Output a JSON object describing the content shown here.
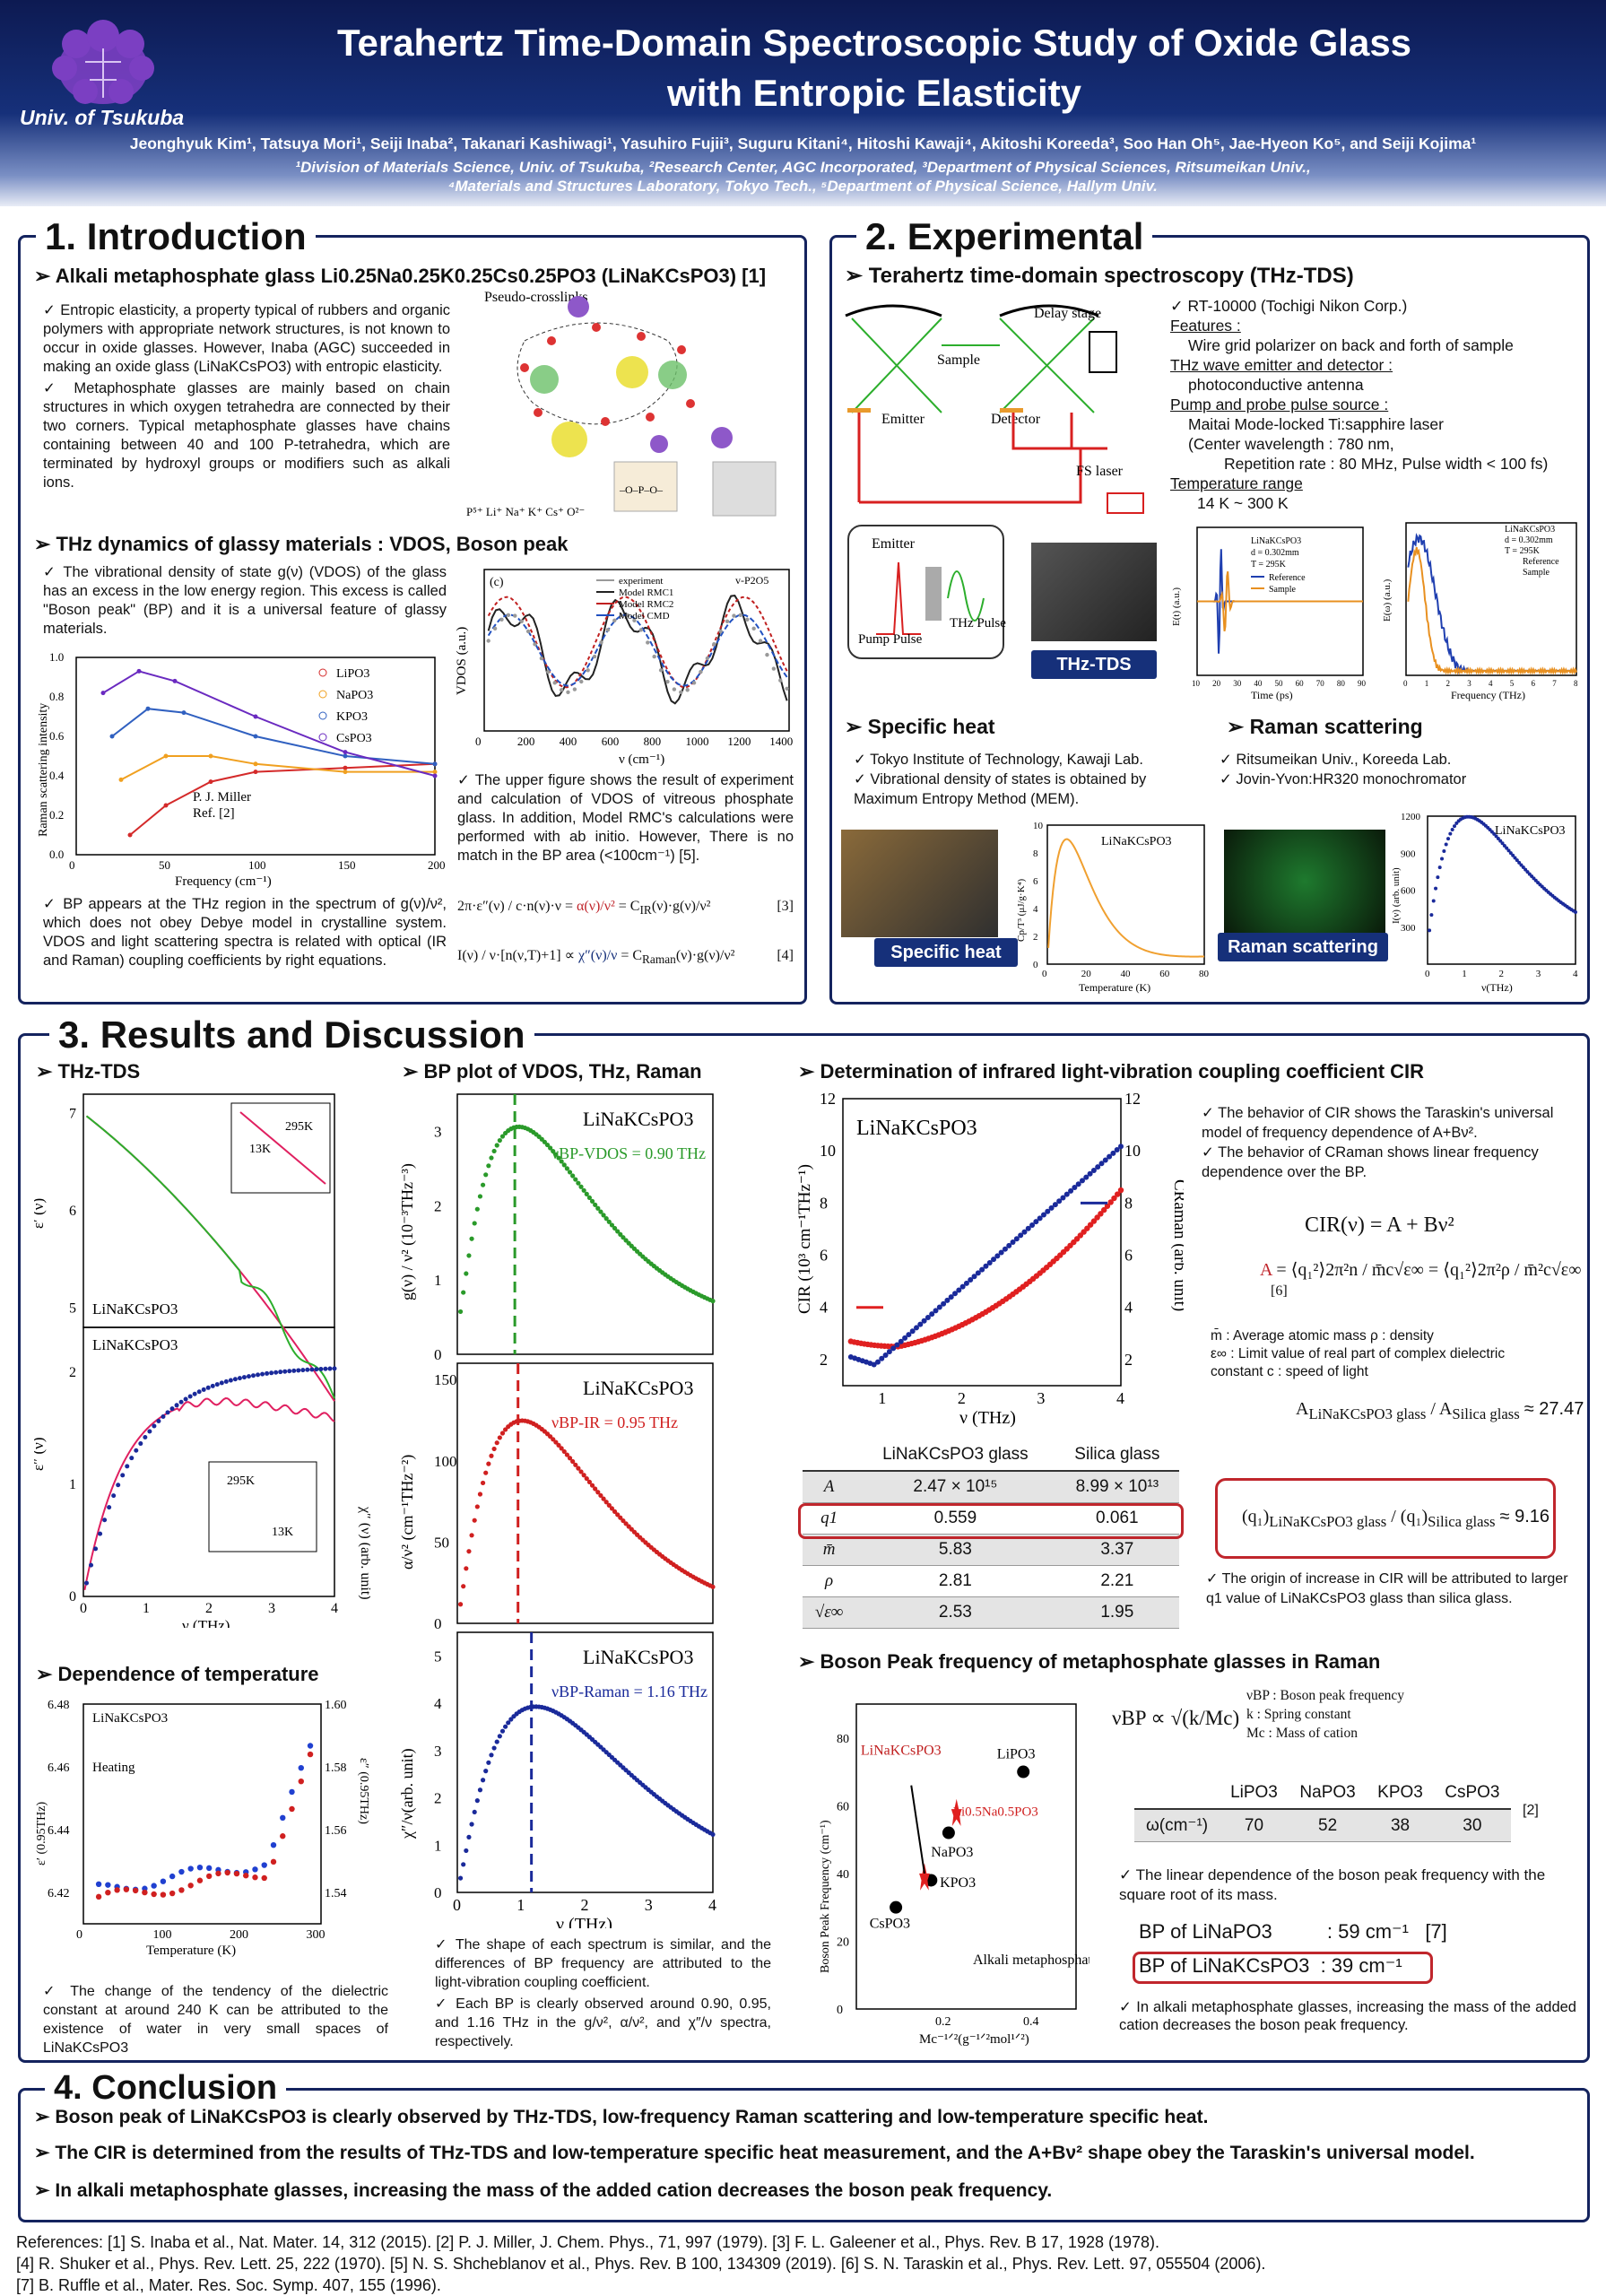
{
  "header": {
    "univ": "Univ. of Tsukuba",
    "title_line1": "Terahertz Time-Domain Spectroscopic Study of Oxide Glass",
    "title_line2": "with Entropic Elasticity",
    "authors": "Jeonghyuk Kim¹, Tatsuya Mori¹, Seiji Inaba², Takanari Kashiwagi¹, Yasuhiro Fujii³, Suguru Kitani⁴, Hitoshi Kawaji⁴, Akitoshi Koreeda³, Soo Han Oh⁵, Jae-Hyeon Ko⁵, and Seiji Kojima¹",
    "affil1": "¹Division of Materials Science, Univ. of Tsukuba, ²Research Center, AGC Incorporated, ³Department of Physical Sciences, Ritsumeikan Univ.,",
    "affil2": "⁴Materials and Structures Laboratory, Tokyo Tech., ⁵Department of Physical Science, Hallym Univ."
  },
  "intro": {
    "title": "1. Introduction",
    "sub1": "➢ Alkali metaphosphate glass Li0.25Na0.25K0.25Cs0.25PO3 (LiNaKCsPO3) [1]",
    "p1": "✓ Entropic elasticity, a property typical of rubbers and organic polymers with appropriate network structures, is not known to occur in oxide glasses. However, Inaba (AGC) succeeded in making an oxide glass (LiNaKCsPO3) with entropic elasticity.",
    "p2": "✓ Metaphosphate glasses are mainly based on chain structures in which oxygen tetrahedra are connected by their two corners. Typical metaphosphate glasses have chains containing between 40 and 100 P-tetrahedra, which are terminated by hydroxyl groups or modifiers such as alkali ions.",
    "fig_label": "Pseudo-crosslinks",
    "ions": "P⁵⁺ Li⁺ Na⁺ K⁺ Cs⁺ O²⁻",
    "sub2": "➢ THz dynamics of glassy materials : VDOS, Boson peak",
    "p3": "✓ The vibrational density of state g(ν) (VDOS) of the glass has an excess in the low energy region. This excess is called \"Boson peak\" (BP) and it is a universal feature of glassy materials.",
    "p4": "✓ BP appears at the THz region in the spectrum of g(ν)/ν², which does not obey Debye model in crystalline system. VDOS and light scattering spectra is related with optical (IR and Raman) coupling coefficients by right equations.",
    "p5": "✓ The upper figure shows the result of experiment and calculation of VDOS of vitreous phosphate glass. In addition, Model RMC's calculations were performed with ab initio. However, There is no match in the BP area (<100cm⁻¹) [5].",
    "eq3": "[3]",
    "eq4": "[4]",
    "raman_ylabel": "Raman scattering intensity",
    "raman_xlabel": "Frequency (cm⁻¹)",
    "raman_note1": "P. J. Miller",
    "raman_note2": "Ref. [2]",
    "raman_legend": [
      "LiPO3",
      "NaPO3",
      "KPO3",
      "CsPO3"
    ],
    "vdos_ylabel": "VDOS (a.u.)",
    "vdos_xlabel": "ν (cm⁻¹)",
    "vdos_panel": "(c)",
    "vdos_title": "v-P2O5",
    "vdos_legend": [
      "experiment",
      "Model RMC1",
      "Model RMC2",
      "Model CMD"
    ]
  },
  "exp": {
    "title": "2. Experimental",
    "sub1": "➢ Terahertz time-domain spectroscopy (THz-TDS)",
    "l1": "✓ RT-10000 (Tochigi Nikon Corp.)",
    "l2": "Features :",
    "l3": "Wire grid polarizer on back and forth of sample",
    "l4": "THz wave emitter and detector :",
    "l5": "photoconductive antenna",
    "l6": "Pump and probe pulse source :",
    "l7": "Maitai Mode-locked Ti:sapphire  laser",
    "l8": "(Center wavelength  : 780 nm,",
    "l9": "Repetition rate : 80 MHz, Pulse width < 100 fs)",
    "l10": "Temperature range",
    "l11": "14 K ~ 300 K",
    "setup": {
      "delay": "Delay stage",
      "sample": "Sample",
      "emitter": "Emitter",
      "detector": "Detector",
      "fs": "FS laser",
      "emitter2": "Emitter",
      "thz": "THz Pulse",
      "pump": "Pump Pulse"
    },
    "photo_label": "THz-TDS",
    "time_xlabel": "Time (ps)",
    "time_ylabel": "E(t) (a.u.)",
    "freq_xlabel": "Frequency (THz)",
    "freq_ylabel": "E(ω) (a.u.)",
    "sample_info": [
      "LiNaKCsPO3",
      "d = 0.302mm",
      "T = 295K"
    ],
    "ref_sample": [
      "Reference",
      "Sample"
    ],
    "sub2": "➢ Specific heat",
    "sh1": "✓ Tokyo Institute of Technology, Kawaji Lab.",
    "sh2": "✓ Vibrational density of states is obtained by Maximum Entropy Method (MEM).",
    "sh_photo": "Specific heat",
    "sh_xlabel": "Temperature (K)",
    "sh_ylabel": "Cp/T³ (μJ/g·K⁴)",
    "sh_name": "LiNaKCsPO3",
    "sub3": "➢ Raman scattering",
    "rs1": "✓ Ritsumeikan Univ., Koreeda Lab.",
    "rs2": "✓ Jovin-Yvon:HR320 monochromator",
    "rs_photo": "Raman scattering",
    "rs_xlabel": "ν(THz)",
    "rs_ylabel": "I(ν) (arb. unit)",
    "rs_name": "LiNaKCsPO3"
  },
  "results": {
    "title": "3. Results and Discussion",
    "sub_thz": "➢ THz-TDS",
    "eps1": "ε′ (ν)",
    "eps2": "ε″ (ν)",
    "thz_name": "LiNaKCsPO3",
    "inset_295": "295K",
    "inset_13": "13K",
    "thz_xlabel": "ν (THz)",
    "chi_label": "χ″ (ν) (arb. unit)",
    "sub_bp": "➢ BP plot of VDOS, THz, Raman",
    "bp_name": "LiNaKCsPO3",
    "bp_vdos": "νBP-VDOS = 0.90 THz",
    "bp_ir": "νBP-IR = 0.95 THz",
    "bp_raman": "νBP-Raman = 1.16 THz",
    "bp_y1": "g(ν) / ν² (10⁻³THz⁻³)",
    "bp_y2": "α/ν² (cm⁻¹THz⁻²)",
    "bp_y3": "χ″/ν(arb. unit)",
    "bp_xlabel": "ν (THz)",
    "bp_c1": "✓ The shape of each spectrum is similar, and the differences of BP frequency are attributed to the light-vibration coupling coefficient.",
    "bp_c2": "✓ Each BP is clearly observed around 0.90, 0.95, and 1.16 THz in the g/ν², α/ν², and χ″/ν spectra, respectively.",
    "sub_temp": "➢ Dependence of temperature",
    "temp_name": "LiNaKCsPO3",
    "temp_heat": "Heating",
    "temp_xlabel": "Temperature (K)",
    "temp_yl": "ε′ (0.95THz)",
    "temp_yr": "ε″ (0.95THz)",
    "temp_c1": "✓ The change of the tendency of the dielectric constant at around 240 K can be attributed to the existence of water in very small spaces of LiNaKCsPO3",
    "sub_cir": "➢ Determination of infrared light-vibration coupling coefficient CIR",
    "cir_name": "LiNaKCsPO3",
    "cir_ylabel": "CIR (10³ cm⁻¹THz⁻¹)",
    "cir_yr": "CRaman (arb. unit)",
    "cir_xlabel": "ν (THz)",
    "cir_c1": "✓ The behavior of CIR shows the Taraskin's universal model of frequency dependence of A+Bν².",
    "cir_c2": "✓ The behavior of CRaman shows linear frequency dependence over the BP.",
    "eq_cir": "CIR(ν) = A + Bν²",
    "eq6": "[6]",
    "defs1": "m̄ : Average atomic mass   ρ : density",
    "defs2": "ε∞ : Limit value of real part of complex dielectric constant   c : speed of light",
    "ratio_A": "≈ 27.47",
    "ratio_q": "≈ 9.16",
    "cir_c3": "✓ The origin of increase in CIR will be attributed to larger q1 value of LiNaKCsPO3 glass than silica glass.",
    "table": {
      "head": [
        "",
        "LiNaKCsPO3 glass",
        "Silica glass"
      ],
      "rows": [
        [
          "A",
          "2.47 × 10¹⁵",
          "8.99 × 10¹³"
        ],
        [
          "q1",
          "0.559",
          "0.061"
        ],
        [
          "m̄",
          "5.83",
          "3.37"
        ],
        [
          "ρ",
          "2.81",
          "2.21"
        ],
        [
          "√ε∞",
          "2.53",
          "1.95"
        ]
      ]
    },
    "sub_bpf": "➢ Boson Peak frequency of metaphosphate glasses in Raman",
    "bpf_ylabel": "Boson Peak Frequency (cm⁻¹)",
    "bpf_xlabel": "Mc⁻¹ᐟ²(g⁻¹ᐟ²mol¹ᐟ²)",
    "bpf_points": [
      "LiPO3",
      "NaPO3",
      "KPO3",
      "CsPO3",
      "LiNaKCsPO3",
      "Li0.5Na0.5PO3"
    ],
    "bpf_note": "Alkali metaphosphate glasses",
    "bp_rel": "νBP ∝ √(k/Mc)",
    "bp_defs": [
      "νBP : Boson peak frequency",
      "k : Spring constant",
      "Mc : Mass of cation"
    ],
    "om_head": [
      "",
      "LiPO3",
      "NaPO3",
      "KPO3",
      "CsPO3"
    ],
    "om_row": [
      "ω(cm⁻¹)",
      "70",
      "52",
      "38",
      "30"
    ],
    "om_ref": "[2]",
    "bpf_c1": "✓ The linear dependence of the boson peak frequency with the square root of its mass.",
    "bp_lina": "BP of LiNaPO3          : 59 cm⁻¹   [7]",
    "bp_linak": "BP of LiNaKCsPO3  : 39 cm⁻¹",
    "bpf_c2": "✓ In alkali metaphosphate glasses, increasing the mass of the added cation decreases the boson peak frequency."
  },
  "conclusion": {
    "title": "4. Conclusion",
    "c1": "➢ Boson peak of LiNaKCsPO3 is clearly observed by THz-TDS, low-frequency Raman scattering and low-temperature specific heat.",
    "c2": "➢ The CIR is determined from the results of THz-TDS and low-temperature specific heat measurement, and the A+Bν² shape obey the Taraskin's universal model.",
    "c3": "➢ In alkali metaphosphate glasses, increasing the mass of the added cation decreases the boson peak frequency."
  },
  "refs": {
    "r1": "References:  [1] S. Inaba et al., Nat. Mater. 14, 312 (2015). [2] P. J. Miller, J. Chem. Phys., 71, 997 (1979).  [3] F. L. Galeener et al., Phys. Rev. B 17, 1928 (1978).",
    "r2": "[4] R. Shuker et al., Phys. Rev. Lett. 25, 222 (1970).  [5] N. S. Shcheblanov et al., Phys. Rev. B 100, 134309 (2019). [6] S. N. Taraskin et al., Phys. Rev. Lett. 97, 055504 (2006).",
    "r3": "[7] B. Ruffle et al., Mater. Res. Soc. Symp. 407, 155 (1996)."
  },
  "chart_data": [
    {
      "type": "line",
      "title": "Raman scattering intensity (P. J. Miller)",
      "xlabel": "Frequency (cm⁻¹)",
      "ylabel": "Raman scattering intensity",
      "xlim": [
        0,
        200
      ],
      "ylim": [
        0,
        1.0
      ],
      "series": [
        {
          "name": "LiPO3",
          "x": [
            30,
            50,
            75,
            100,
            150,
            200
          ],
          "values": [
            0.1,
            0.25,
            0.37,
            0.42,
            0.44,
            0.46
          ]
        },
        {
          "name": "NaPO3",
          "x": [
            25,
            50,
            75,
            100,
            150,
            200
          ],
          "values": [
            0.38,
            0.5,
            0.5,
            0.46,
            0.42,
            0.42
          ]
        },
        {
          "name": "KPO3",
          "x": [
            20,
            40,
            60,
            100,
            150,
            200
          ],
          "values": [
            0.6,
            0.74,
            0.72,
            0.6,
            0.5,
            0.46
          ]
        },
        {
          "name": "CsPO3",
          "x": [
            15,
            35,
            55,
            100,
            150,
            200
          ],
          "values": [
            0.82,
            0.93,
            0.88,
            0.7,
            0.52,
            0.4
          ]
        }
      ]
    },
    {
      "type": "bar",
      "title": "ω(cm⁻¹)",
      "categories": [
        "LiPO3",
        "NaPO3",
        "KPO3",
        "CsPO3"
      ],
      "values": [
        70,
        52,
        38,
        30
      ]
    }
  ]
}
